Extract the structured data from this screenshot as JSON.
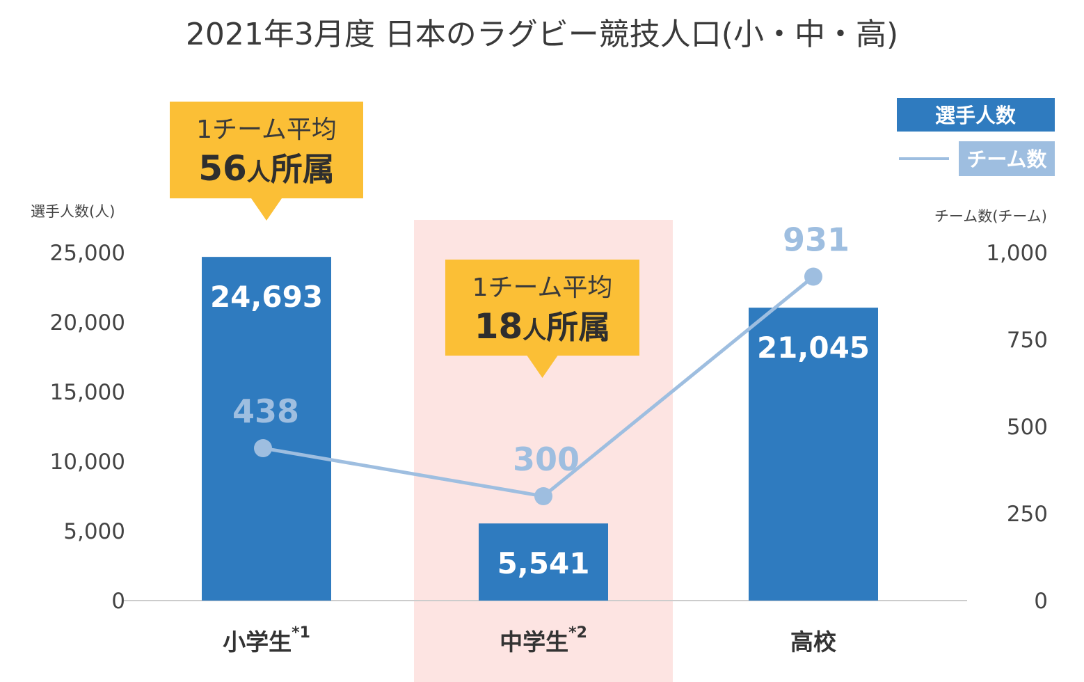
{
  "chart_data": {
    "type": "bar+line",
    "title": "2021年3月度  日本のラグビー競技人口(小・中・高)",
    "categories": [
      "小学生",
      "中学生",
      "高校"
    ],
    "category_notes": [
      "*1",
      "*2",
      ""
    ],
    "y_left": {
      "label": "選手人数(人)",
      "range": [
        0,
        25000
      ],
      "ticks": [
        "0",
        "5,000",
        "10,000",
        "15,000",
        "20,000",
        "25,000"
      ]
    },
    "y_right": {
      "label": "チーム数(チーム)",
      "range": [
        0,
        1000
      ],
      "ticks": [
        "0",
        "250",
        "500",
        "750",
        "1,000"
      ]
    },
    "series": [
      {
        "name": "選手人数",
        "kind": "bar",
        "axis": "left",
        "values": [
          24693,
          5541,
          21045
        ],
        "labels": [
          "24,693",
          "5,541",
          "21,045"
        ],
        "color": "#2f7bbf"
      },
      {
        "name": "チーム数",
        "kind": "line",
        "axis": "right",
        "values": [
          438,
          300,
          931
        ],
        "labels": [
          "438",
          "300",
          "931"
        ],
        "color": "#9ebee0"
      }
    ],
    "highlight_category": "中学生",
    "highlight_color": "#fde4e2",
    "callout_color": "#fbbf36",
    "annotations": [
      {
        "category": "小学生",
        "line1": "1チーム平均",
        "number": "56",
        "suffix_small": "人",
        "suffix": "所属"
      },
      {
        "category": "中学生",
        "line1": "1チーム平均",
        "number": "18",
        "suffix_small": "人",
        "suffix": "所属"
      }
    ],
    "legend": {
      "position": "top-right"
    },
    "grid": false
  }
}
